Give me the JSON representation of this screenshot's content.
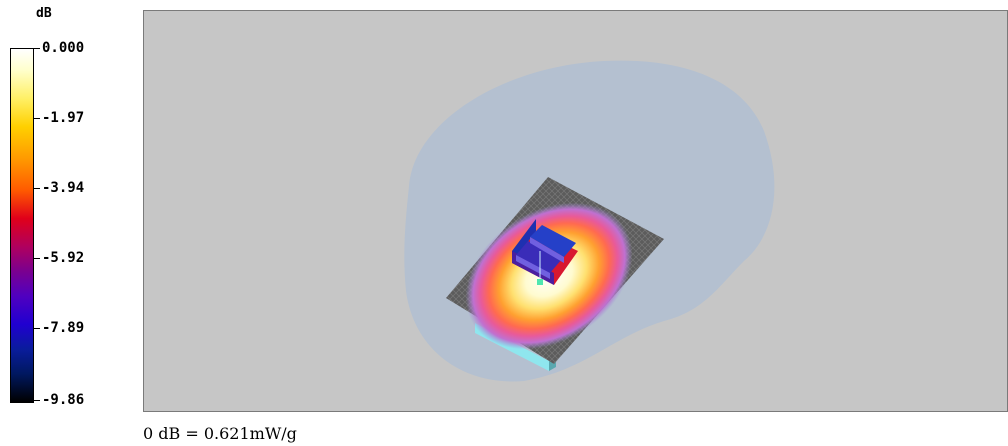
{
  "legend": {
    "unit": "dB",
    "ticks": [
      "0.000",
      "-1.97",
      "-3.94",
      "-5.92",
      "-7.89",
      "-9.86"
    ]
  },
  "footer": "0 dB = 0.621mW/g",
  "colors": {
    "background": "#c6c6c6",
    "halo": "#b4c0d0",
    "plate": "#5c5c5c",
    "device": "#8fe6ee"
  }
}
